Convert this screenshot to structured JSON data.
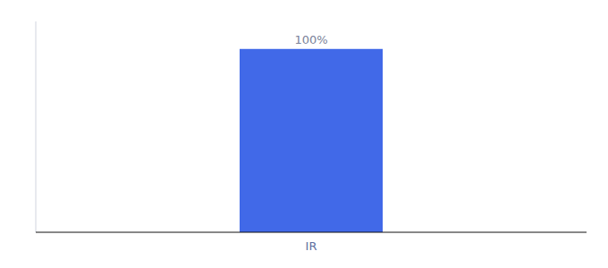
{
  "chart_data": {
    "type": "bar",
    "categories": [
      "IR"
    ],
    "values": [
      100
    ],
    "value_labels": [
      "100%"
    ],
    "color": "#4169e8",
    "ylim": [
      0,
      115
    ],
    "data_labels": true,
    "tick_labels": "x",
    "grid": false
  }
}
